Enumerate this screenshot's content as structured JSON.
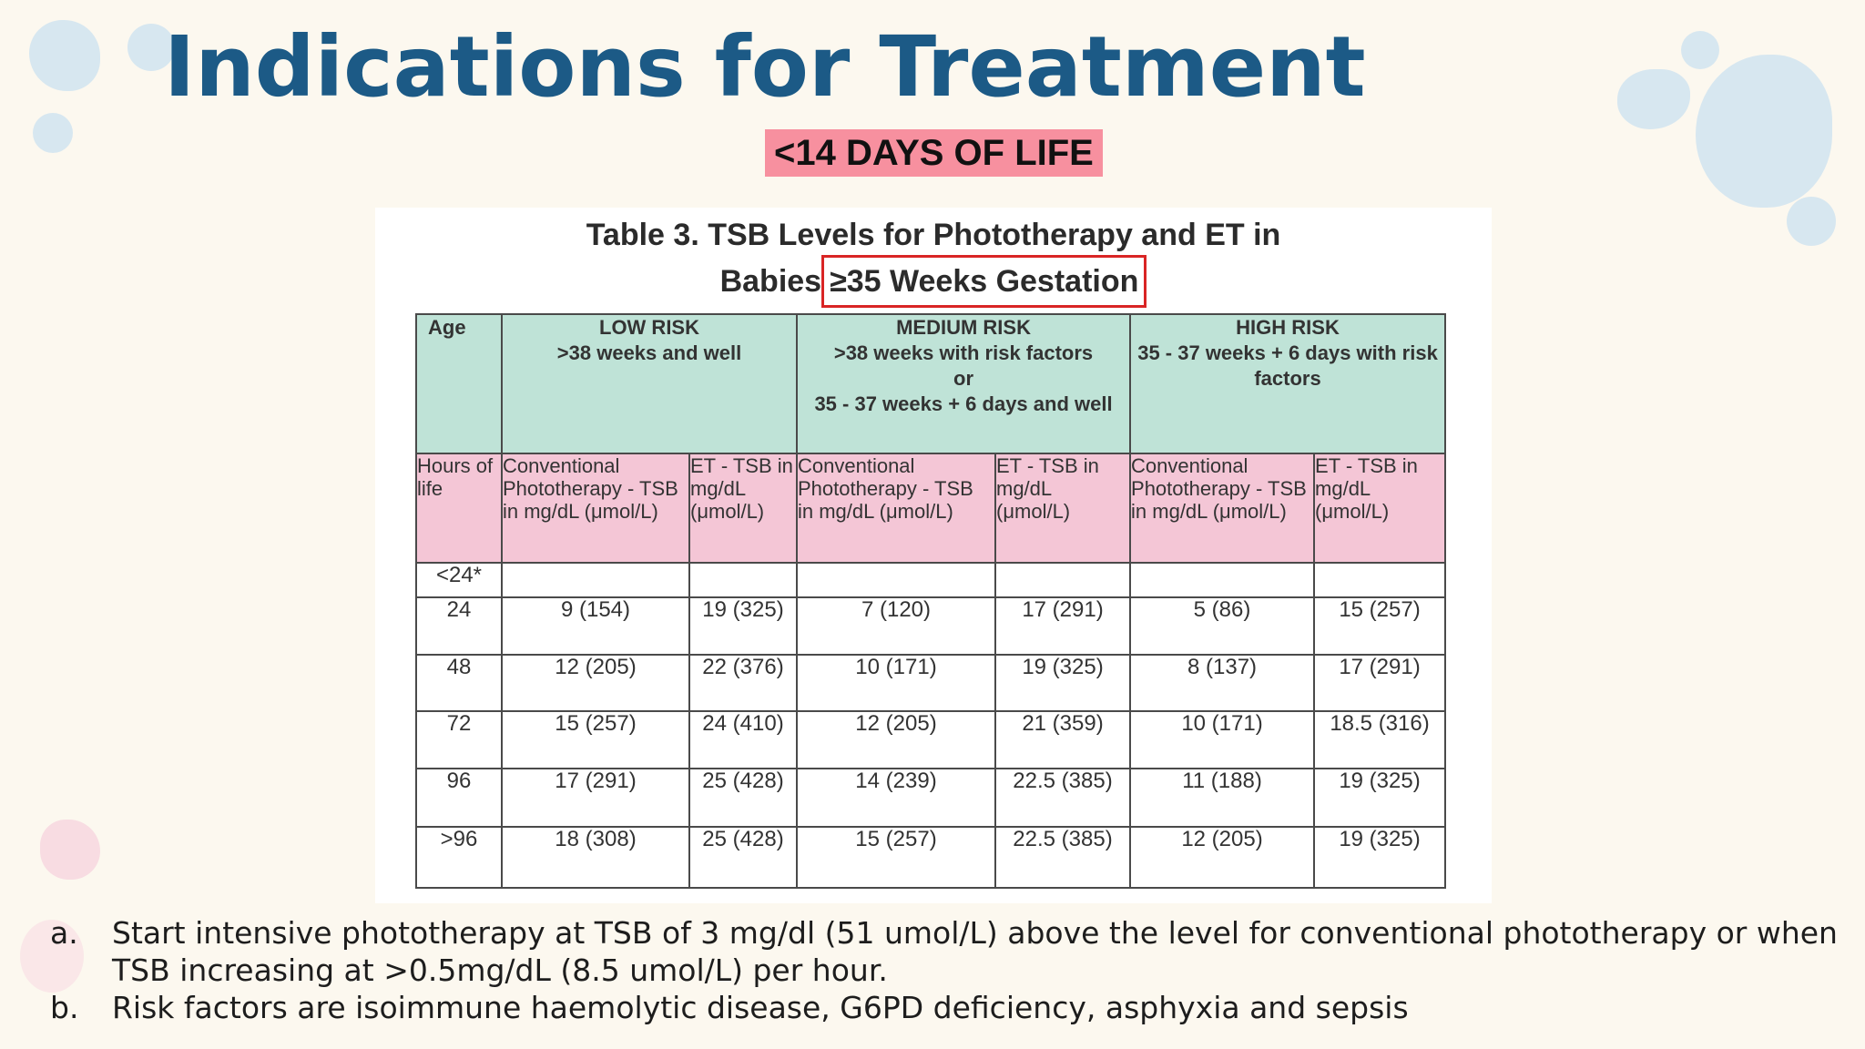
{
  "slide": {
    "title": "Indications for Treatment",
    "subtitle": "<14 DAYS OF LIFE"
  },
  "table": {
    "caption_line1": "Table 3. TSB Levels for Phototherapy and ET in",
    "caption_line2_prefix": "Babies",
    "caption_line2_boxed": "≥35 Weeks Gestation",
    "header_row1": {
      "age": "Age",
      "low_risk_l1": "LOW RISK",
      "low_risk_l2": ">38 weeks and well",
      "medium_risk_l1": "MEDIUM RISK",
      "medium_risk_l2": ">38 weeks with risk factors",
      "medium_risk_l3": "or",
      "medium_risk_l4": "35 - 37 weeks + 6 days and well",
      "high_risk_l1": "HIGH RISK",
      "high_risk_l2": "35 - 37 weeks + 6 days with risk factors"
    },
    "header_row2": {
      "hours": "Hours of life",
      "conventional": "Conventional Phototherapy - TSB in mg/dL (μmol/L)",
      "et": "ET - TSB in mg/dL (μmol/L)"
    },
    "rows": [
      {
        "age": "<24*",
        "low_conv": "",
        "low_et": "",
        "med_conv": "",
        "med_et": "",
        "high_conv": "",
        "high_et": ""
      },
      {
        "age": "24",
        "low_conv": "9 (154)",
        "low_et": "19 (325)",
        "med_conv": "7 (120)",
        "med_et": "17 (291)",
        "high_conv": "5 (86)",
        "high_et": "15 (257)"
      },
      {
        "age": "48",
        "low_conv": "12 (205)",
        "low_et": "22 (376)",
        "med_conv": "10 (171)",
        "med_et": "19 (325)",
        "high_conv": "8 (137)",
        "high_et": "17 (291)"
      },
      {
        "age": "72",
        "low_conv": "15 (257)",
        "low_et": "24 (410)",
        "med_conv": "12 (205)",
        "med_et": "21 (359)",
        "high_conv": "10 (171)",
        "high_et": "18.5 (316)"
      },
      {
        "age": "96",
        "low_conv": "17 (291)",
        "low_et": "25 (428)",
        "med_conv": "14 (239)",
        "med_et": "22.5 (385)",
        "high_conv": "11 (188)",
        "high_et": "19 (325)"
      },
      {
        "age": ">96",
        "low_conv": "18 (308)",
        "low_et": "25 (428)",
        "med_conv": "15 (257)",
        "med_et": "22.5 (385)",
        "high_conv": "12 (205)",
        "high_et": "19 (325)"
      }
    ]
  },
  "notes": [
    {
      "marker": "a.",
      "text": "Start intensive phototherapy at TSB of 3 mg/dl (51 umol/L) above the level for conventional phototherapy or when TSB increasing at >0.5mg/dL (8.5 umol/L) per hour."
    },
    {
      "marker": "b.",
      "text": "Risk factors are isoimmune haemolytic disease, G6PD deficiency, asphyxia and sepsis"
    }
  ],
  "colors": {
    "background": "#fcf8ef",
    "title": "#1c5a86",
    "subtitle_highlight": "#f7909f",
    "header_green": "#bfe3d7",
    "header_pink": "#f4c6d6",
    "caption_box": "#d92525"
  }
}
